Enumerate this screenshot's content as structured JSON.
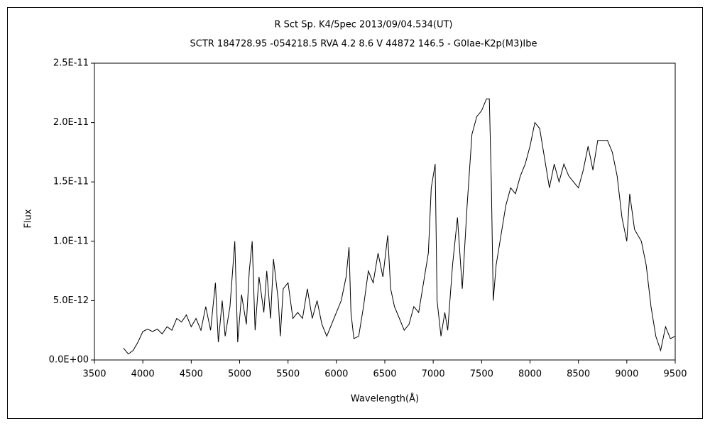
{
  "chart_data": {
    "type": "line",
    "title": "R Sct    Sp. K4/5pec    2013/09/04.534(UT)",
    "subtitle": "SCTR 184728.95 -054218.5 RVA 4.2 8.6 V 44872 146.5 - G0Iae-K2p(M3)Ibe",
    "x_label": "Wavelength(Å)",
    "y_label": "Flux",
    "color": "#000000",
    "x": [
      3800,
      3850,
      3900,
      3950,
      4000,
      4050,
      4100,
      4150,
      4200,
      4250,
      4300,
      4350,
      4400,
      4450,
      4500,
      4550,
      4600,
      4650,
      4700,
      4750,
      4780,
      4820,
      4850,
      4900,
      4950,
      4980,
      5020,
      5070,
      5100,
      5130,
      5160,
      5200,
      5250,
      5280,
      5320,
      5350,
      5400,
      5420,
      5450,
      5500,
      5550,
      5600,
      5650,
      5700,
      5750,
      5800,
      5850,
      5900,
      5950,
      6000,
      6050,
      6100,
      6130,
      6150,
      6180,
      6230,
      6280,
      6330,
      6380,
      6430,
      6480,
      6530,
      6560,
      6600,
      6650,
      6700,
      6750,
      6800,
      6850,
      6900,
      6950,
      6980,
      7020,
      7040,
      7080,
      7120,
      7150,
      7200,
      7250,
      7300,
      7350,
      7400,
      7450,
      7500,
      7550,
      7580,
      7600,
      7620,
      7650,
      7700,
      7750,
      7800,
      7850,
      7900,
      7950,
      8000,
      8050,
      8100,
      8150,
      8200,
      8250,
      8300,
      8350,
      8400,
      8450,
      8500,
      8550,
      8600,
      8650,
      8700,
      8750,
      8800,
      8850,
      8900,
      8950,
      9000,
      9030,
      9080,
      9150,
      9200,
      9250,
      9300,
      9350,
      9400,
      9450,
      9500
    ],
    "values": [
      1e-12,
      5e-13,
      8e-13,
      1.5e-12,
      2.4e-12,
      2.6e-12,
      2.4e-12,
      2.6e-12,
      2.2e-12,
      2.8e-12,
      2.5e-12,
      3.5e-12,
      3.2e-12,
      3.8e-12,
      2.8e-12,
      3.5e-12,
      2.5e-12,
      4.5e-12,
      2.5e-12,
      6.5e-12,
      1.5e-12,
      5e-12,
      2e-12,
      4.5e-12,
      1e-11,
      1.5e-12,
      5.5e-12,
      3e-12,
      7.5e-12,
      1e-11,
      2.5e-12,
      7e-12,
      4e-12,
      7.5e-12,
      3.5e-12,
      8.5e-12,
      5e-12,
      2e-12,
      6e-12,
      6.5e-12,
      3.5e-12,
      4e-12,
      3.5e-12,
      6e-12,
      3.5e-12,
      5e-12,
      3e-12,
      2e-12,
      3e-12,
      4e-12,
      5e-12,
      7e-12,
      9.5e-12,
      4e-12,
      1.8e-12,
      2e-12,
      4.5e-12,
      7.5e-12,
      6.5e-12,
      9e-12,
      7e-12,
      1.05e-11,
      6e-12,
      4.5e-12,
      3.5e-12,
      2.5e-12,
      3e-12,
      4.5e-12,
      4e-12,
      6.5e-12,
      9e-12,
      1.45e-11,
      1.65e-11,
      5e-12,
      2e-12,
      4e-12,
      2.5e-12,
      8e-12,
      1.2e-11,
      6e-12,
      1.3e-11,
      1.9e-11,
      2.05e-11,
      2.1e-11,
      2.2e-11,
      2.2e-11,
      1.5e-11,
      5e-12,
      8e-12,
      1.05e-11,
      1.3e-11,
      1.45e-11,
      1.4e-11,
      1.55e-11,
      1.65e-11,
      1.8e-11,
      2e-11,
      1.95e-11,
      1.7e-11,
      1.45e-11,
      1.65e-11,
      1.5e-11,
      1.65e-11,
      1.55e-11,
      1.5e-11,
      1.45e-11,
      1.6e-11,
      1.8e-11,
      1.6e-11,
      1.85e-11,
      1.85e-11,
      1.85e-11,
      1.75e-11,
      1.55e-11,
      1.2e-11,
      1e-11,
      1.4e-11,
      1.1e-11,
      1e-11,
      8e-12,
      4.5e-12,
      2e-12,
      8e-13,
      2.8e-12,
      1.8e-12,
      2e-12
    ],
    "xlim": [
      3500,
      9500
    ],
    "xticks": [
      3500,
      4000,
      4500,
      5000,
      5500,
      6000,
      6500,
      7000,
      7500,
      8000,
      8500,
      9000,
      9500
    ],
    "ylim": [
      0,
      2.5e-11
    ],
    "yticks": [
      {
        "value": 0,
        "label": "0.0E+00"
      },
      {
        "value": 5e-12,
        "label": "5.0E-12"
      },
      {
        "value": 1e-11,
        "label": "1.0E-11"
      },
      {
        "value": 1.5e-11,
        "label": "1.5E-11"
      },
      {
        "value": 2e-11,
        "label": "2.0E-11"
      },
      {
        "value": 2.5e-11,
        "label": "2.5E-11"
      }
    ],
    "grid": false
  }
}
